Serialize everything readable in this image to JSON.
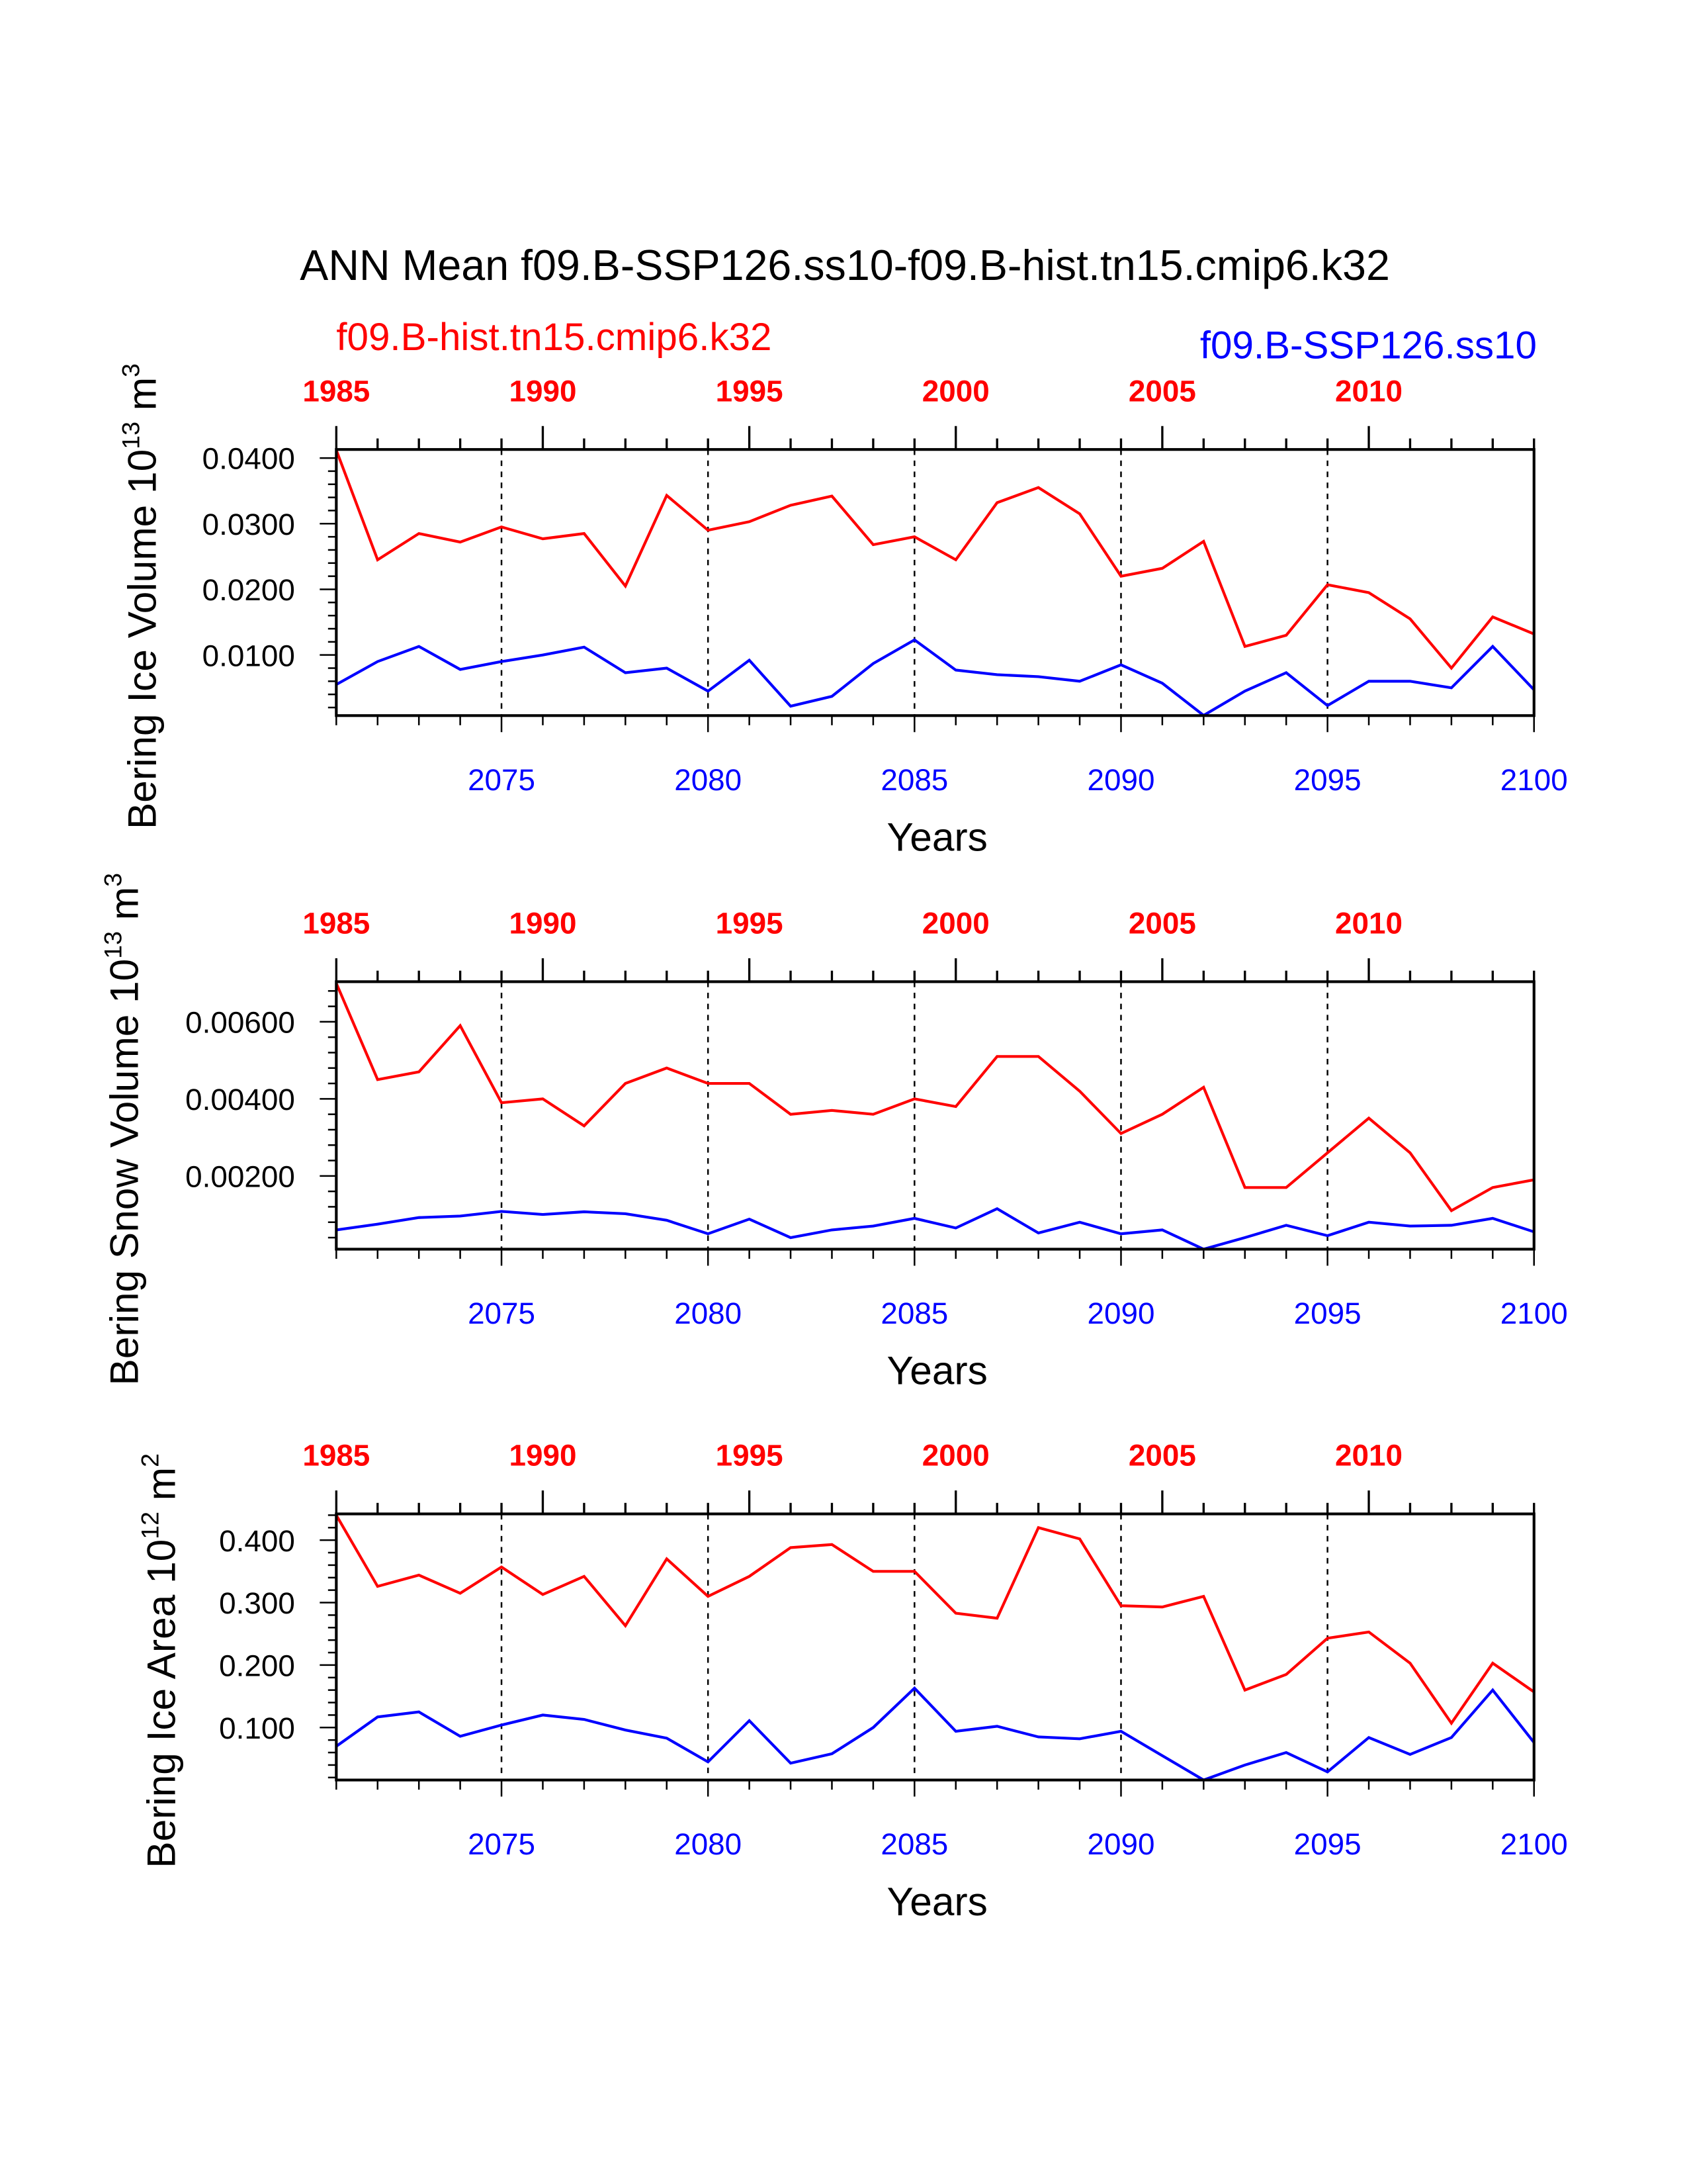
{
  "title": "ANN Mean f09.B-SSP126.ss10-f09.B-hist.tn15.cmip6.k32",
  "legend": {
    "red": "f09.B-hist.tn15.cmip6.k32",
    "blue": "f09.B-SSP126.ss10"
  },
  "colors": {
    "red": "#ff0000",
    "blue": "#0000ff"
  },
  "chart_data": [
    {
      "type": "line",
      "ylabel": "Bering Ice Volume 10",
      "ylabel_exp": "13",
      "ylabel_unit": " m",
      "ylabel_unit_exp": "3",
      "xlabel": "Years",
      "ylim": [
        0.00077,
        0.0413
      ],
      "yticks": [
        0.01,
        0.02,
        0.03,
        0.04
      ],
      "ytick_labels": [
        "0.0100",
        "0.0200",
        "0.0300",
        "0.0400"
      ],
      "yminor": 0.002,
      "x_bottom": {
        "range": [
          2071,
          2100
        ],
        "ticks": [
          2075,
          2080,
          2085,
          2090,
          2095,
          2100
        ]
      },
      "x_top": {
        "range": [
          1985,
          2014
        ],
        "ticks": [
          1985,
          1990,
          1995,
          2000,
          2005,
          2010
        ]
      },
      "series": [
        {
          "name": "f09.B-hist.tn15.cmip6.k32",
          "color": "#ff0000",
          "values": [
            0.0412,
            0.0245,
            0.0285,
            0.0272,
            0.0295,
            0.0277,
            0.0285,
            0.0205,
            0.0343,
            0.029,
            0.0303,
            0.0328,
            0.0342,
            0.0268,
            0.028,
            0.0245,
            0.0332,
            0.0355,
            0.0315,
            0.022,
            0.0232,
            0.0273,
            0.0113,
            0.013,
            0.0207,
            0.0195,
            0.0155,
            0.008,
            0.0158,
            0.0132
          ]
        },
        {
          "name": "f09.B-SSP126.ss10",
          "color": "#0000ff",
          "values": [
            0.0055,
            0.009,
            0.0113,
            0.0078,
            0.009,
            0.01,
            0.0112,
            0.0073,
            0.008,
            0.0045,
            0.0092,
            0.0022,
            0.0037,
            0.0087,
            0.0123,
            0.0077,
            0.007,
            0.0067,
            0.006,
            0.0085,
            0.0057,
            0.0008,
            0.0045,
            0.0073,
            0.0023,
            0.006,
            0.006,
            0.005,
            0.0113,
            0.0047
          ]
        }
      ]
    },
    {
      "type": "line",
      "ylabel": "Bering Snow Volume 10",
      "ylabel_exp": "13",
      "ylabel_unit": " m",
      "ylabel_unit_exp": "3",
      "xlabel": "Years",
      "ylim": [
        0.0001,
        0.00704
      ],
      "yticks": [
        0.002,
        0.004,
        0.006
      ],
      "ytick_labels": [
        "0.00200",
        "0.00400",
        "0.00600"
      ],
      "yminor": 0.0004,
      "x_bottom": {
        "range": [
          2071,
          2100
        ],
        "ticks": [
          2075,
          2080,
          2085,
          2090,
          2095,
          2100
        ]
      },
      "x_top": {
        "range": [
          1985,
          2014
        ],
        "ticks": [
          1985,
          1990,
          1995,
          2000,
          2005,
          2010
        ]
      },
      "series": [
        {
          "name": "f09.B-hist.tn15.cmip6.k32",
          "color": "#ff0000",
          "values": [
            0.007,
            0.0045,
            0.0047,
            0.0059,
            0.0039,
            0.004,
            0.0033,
            0.0044,
            0.0048,
            0.0044,
            0.0044,
            0.0036,
            0.0037,
            0.0036,
            0.004,
            0.0038,
            0.0051,
            0.0051,
            0.0042,
            0.0031,
            0.0036,
            0.0043,
            0.0017,
            0.0017,
            0.0026,
            0.0035,
            0.0026,
            0.0011,
            0.0017,
            0.0019
          ]
        },
        {
          "name": "f09.B-SSP126.ss10",
          "color": "#0000ff",
          "values": [
            0.0006,
            0.00075,
            0.00092,
            0.00096,
            0.00108,
            0.001,
            0.00107,
            0.00102,
            0.00085,
            0.0005,
            0.00088,
            0.0004,
            0.0006,
            0.0007,
            0.0009,
            0.00065,
            0.00115,
            0.00052,
            0.0008,
            0.0005,
            0.0006,
            0.0001,
            0.0004,
            0.00072,
            0.00045,
            0.0008,
            0.0007,
            0.00072,
            0.0009,
            0.00055
          ]
        }
      ]
    },
    {
      "type": "line",
      "ylabel": "Bering Ice Area 10",
      "ylabel_exp": "12",
      "ylabel_unit": " m",
      "ylabel_unit_exp": "2",
      "xlabel": "Years",
      "ylim": [
        0.016,
        0.442
      ],
      "yticks": [
        0.1,
        0.2,
        0.3,
        0.4
      ],
      "ytick_labels": [
        "0.100",
        "0.200",
        "0.300",
        "0.400"
      ],
      "yminor": 0.02,
      "x_bottom": {
        "range": [
          2071,
          2100
        ],
        "ticks": [
          2075,
          2080,
          2085,
          2090,
          2095,
          2100
        ]
      },
      "x_top": {
        "range": [
          1985,
          2014
        ],
        "ticks": [
          1985,
          1990,
          1995,
          2000,
          2005,
          2010
        ]
      },
      "series": [
        {
          "name": "f09.B-hist.tn15.cmip6.k32",
          "color": "#ff0000",
          "values": [
            0.44,
            0.326,
            0.344,
            0.315,
            0.357,
            0.313,
            0.342,
            0.263,
            0.37,
            0.31,
            0.342,
            0.388,
            0.393,
            0.35,
            0.35,
            0.283,
            0.275,
            0.42,
            0.402,
            0.295,
            0.293,
            0.31,
            0.16,
            0.185,
            0.243,
            0.253,
            0.203,
            0.107,
            0.203,
            0.157
          ]
        },
        {
          "name": "f09.B-SSP126.ss10",
          "color": "#0000ff",
          "values": [
            0.07,
            0.117,
            0.125,
            0.086,
            0.104,
            0.12,
            0.113,
            0.096,
            0.083,
            0.045,
            0.111,
            0.043,
            0.058,
            0.1,
            0.163,
            0.094,
            0.102,
            0.085,
            0.082,
            0.094,
            0.055,
            0.016,
            0.04,
            0.06,
            0.029,
            0.084,
            0.057,
            0.084,
            0.16,
            0.076
          ]
        }
      ]
    }
  ]
}
